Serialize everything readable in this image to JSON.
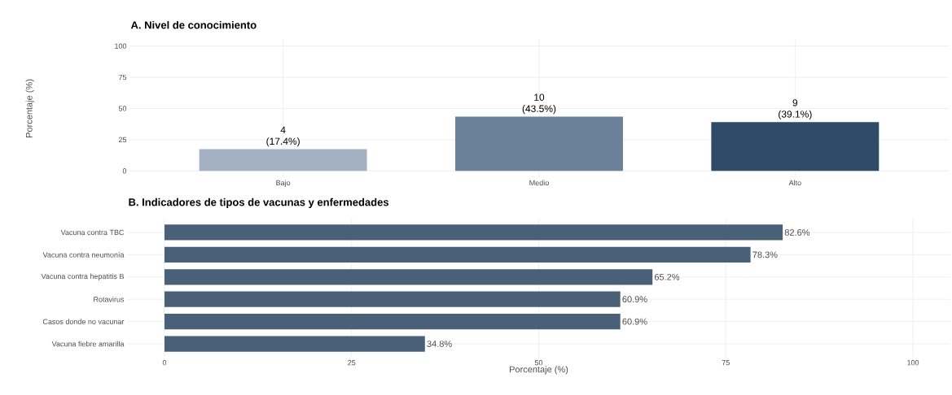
{
  "chart_data": [
    {
      "type": "bar",
      "title": "A. Nivel de conocimiento",
      "ylabel": "Porcentaje (%)",
      "categories": [
        "Bajo",
        "Medio",
        "Alto"
      ],
      "values": [
        17.4,
        43.5,
        39.1
      ],
      "colors": [
        "#a3b1c2",
        "#6b8199",
        "#2f4b68"
      ],
      "value_labels": [
        "4 (17.4%)",
        "10 (43.5%)",
        "9 (39.1%)"
      ],
      "ylim": [
        -5,
        105
      ],
      "yticks": [
        0,
        25,
        50,
        75,
        100
      ],
      "grid": true
    },
    {
      "type": "bar",
      "orientation": "horizontal",
      "title": "B. Indicadores de tipos de vacunas y enfermedades",
      "xlabel": "Porcentaje (%)",
      "categories": [
        "Vacuna contra TBC",
        "Vacuna contra neumonía",
        "Vacuna contra hepatitis B",
        "Rotavirus",
        "Casos donde no vacunar",
        "Vacuna fiebre amarilla"
      ],
      "values": [
        82.6,
        78.3,
        65.2,
        60.9,
        60.9,
        34.8
      ],
      "color": "#4a6078",
      "value_labels": [
        "82.6%",
        "78.3%",
        "65.2%",
        "60.9%",
        "60.9%",
        "34.8%"
      ],
      "xlim": [
        -5,
        105
      ],
      "xticks": [
        0,
        25,
        50,
        75,
        100
      ],
      "grid": true
    }
  ]
}
